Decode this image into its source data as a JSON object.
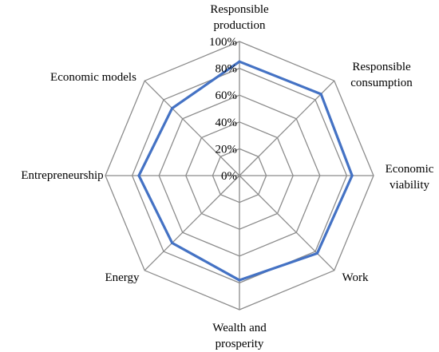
{
  "chart_data": {
    "type": "radar",
    "title": "",
    "axes": [
      "Responsible\nproduction",
      "Responsible\nconsumption",
      "Economic\nviability",
      "Work",
      "Wealth and\nprosperity",
      "Energy",
      "Entrepreneurship",
      "Economic models"
    ],
    "ticks": [
      "0%",
      "20%",
      "40%",
      "60%",
      "80%",
      "100%"
    ],
    "range": [
      0,
      100
    ],
    "grid": true,
    "legend": "none",
    "series": [
      {
        "values": [
          85,
          86,
          84,
          82,
          78,
          71,
          75,
          71
        ],
        "color": "#4472C4"
      }
    ]
  }
}
